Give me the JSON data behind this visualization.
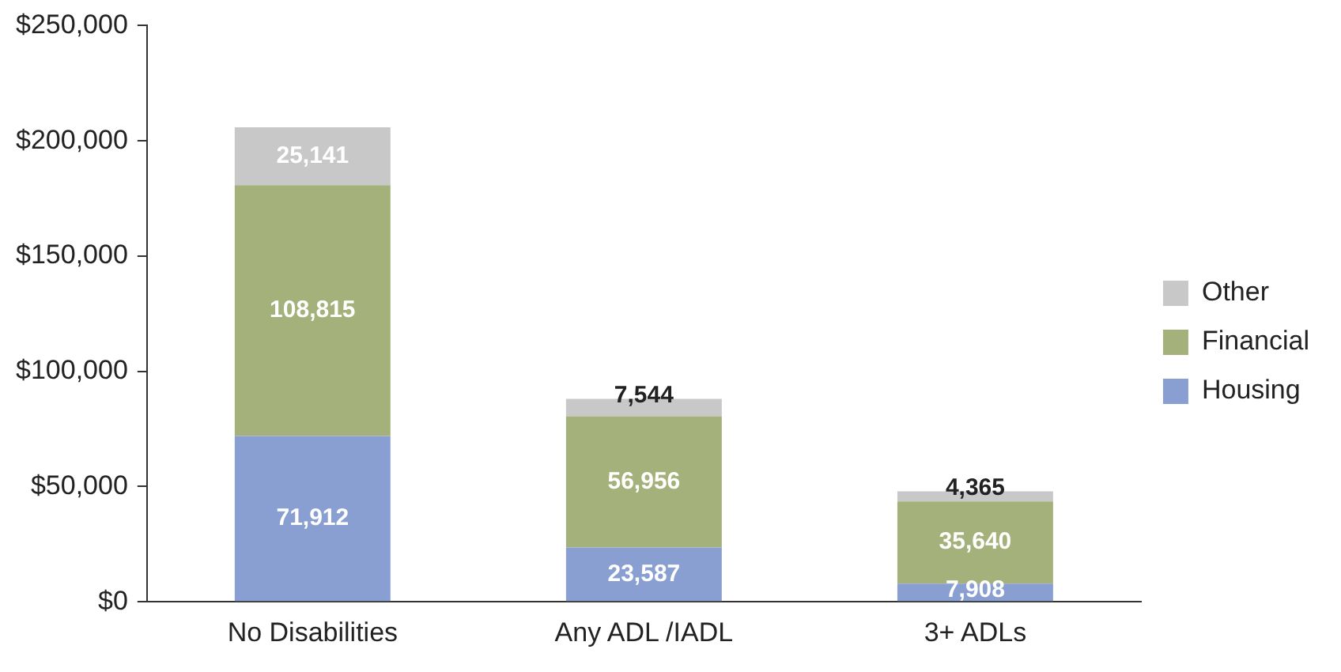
{
  "chart_data": {
    "type": "bar",
    "stacked": true,
    "categories": [
      "No Disabilities",
      "Any ADL /IADL",
      "3+ ADLs"
    ],
    "series": [
      {
        "name": "Housing",
        "color": "#8a9fd1",
        "values": [
          71912,
          23587,
          7908
        ],
        "value_labels": [
          "71,912",
          "23,587",
          "7,908"
        ]
      },
      {
        "name": "Financial",
        "color": "#a5b17a",
        "values": [
          108815,
          56956,
          35640
        ],
        "value_labels": [
          "108,815",
          "56,956",
          "35,640"
        ]
      },
      {
        "name": "Other",
        "color": "#c8c8c8",
        "values": [
          25141,
          7544,
          4365
        ],
        "value_labels": [
          "25,141",
          "7,544",
          "4,365"
        ]
      }
    ],
    "ylim": [
      0,
      250000
    ],
    "yticks": [
      {
        "value": 0,
        "label": "$0"
      },
      {
        "value": 50000,
        "label": "$50,000"
      },
      {
        "value": 100000,
        "label": "$100,000"
      },
      {
        "value": 150000,
        "label": "$150,000"
      },
      {
        "value": 200000,
        "label": "$200,000"
      },
      {
        "value": 250000,
        "label": "$250,000"
      }
    ],
    "grid": false,
    "legend": "right"
  }
}
